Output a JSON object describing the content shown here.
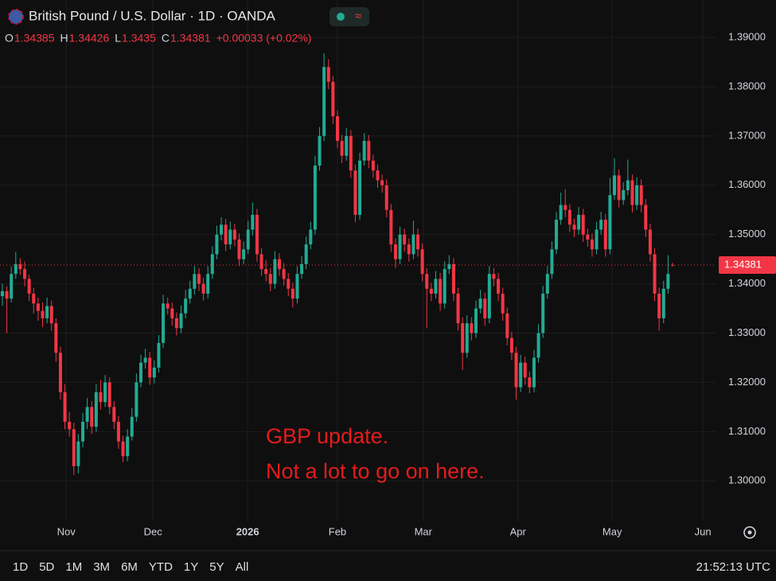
{
  "chart_data": {
    "type": "candlestick",
    "title": "British Pound / U.S. Dollar · 1D · OANDA",
    "ohlc_letters": [
      "O",
      "H",
      "L",
      "C"
    ],
    "change": "+0.00033 (+0.02%)",
    "annotation": [
      "GBP update.",
      "Not a lot to go on here."
    ],
    "up_color": "#22ab94",
    "down_color": "#f23645",
    "ylim": [
      1.2918,
      1.3976
    ],
    "yticks": [
      {
        "value": 1.39,
        "label": "1.39000"
      },
      {
        "value": 1.38,
        "label": "1.38000"
      },
      {
        "value": 1.37,
        "label": "1.37000"
      },
      {
        "value": 1.36,
        "label": "1.36000"
      },
      {
        "value": 1.35,
        "label": "1.35000"
      },
      {
        "value": 1.34,
        "label": "1.34000"
      },
      {
        "value": 1.33,
        "label": "1.33000"
      },
      {
        "value": 1.32,
        "label": "1.32000"
      },
      {
        "value": 1.31,
        "label": "1.31000"
      },
      {
        "value": 1.3,
        "label": "1.30000"
      }
    ],
    "xlim": [
      -0.53,
      159.8
    ],
    "xticks": [
      {
        "value": 14.3,
        "label": "Nov"
      },
      {
        "value": 33.7,
        "label": "Dec"
      },
      {
        "value": 54.9,
        "label": "2026"
      },
      {
        "value": 75.0,
        "label": "Feb"
      },
      {
        "value": 94.2,
        "label": "Mar"
      },
      {
        "value": 115.4,
        "label": "Apr"
      },
      {
        "value": 136.5,
        "label": "May"
      },
      {
        "value": 156.8,
        "label": "Jun"
      }
    ],
    "grid": true,
    "candles": [
      [
        1.3375,
        1.34,
        1.3355,
        1.3385
      ],
      [
        1.3385,
        1.3395,
        1.33,
        1.337
      ],
      [
        1.337,
        1.3435,
        1.3362,
        1.342
      ],
      [
        1.342,
        1.3465,
        1.341,
        1.344
      ],
      [
        1.344,
        1.3452,
        1.3418,
        1.343
      ],
      [
        1.343,
        1.3445,
        1.3395,
        1.341
      ],
      [
        1.341,
        1.3418,
        1.3365,
        1.338
      ],
      [
        1.338,
        1.3392,
        1.334,
        1.336
      ],
      [
        1.336,
        1.3372,
        1.3325,
        1.3345
      ],
      [
        1.3345,
        1.3362,
        1.3312,
        1.333
      ],
      [
        1.333,
        1.3372,
        1.332,
        1.3355
      ],
      [
        1.3355,
        1.3366,
        1.3305,
        1.332
      ],
      [
        1.332,
        1.333,
        1.3242,
        1.326
      ],
      [
        1.326,
        1.3272,
        1.3165,
        1.318
      ],
      [
        1.318,
        1.3196,
        1.3105,
        1.312
      ],
      [
        1.312,
        1.314,
        1.309,
        1.3105
      ],
      [
        1.3105,
        1.3118,
        1.3012,
        1.303
      ],
      [
        1.303,
        1.3095,
        1.3015,
        1.308
      ],
      [
        1.308,
        1.3138,
        1.3068,
        1.312
      ],
      [
        1.312,
        1.3168,
        1.3105,
        1.315
      ],
      [
        1.315,
        1.3162,
        1.3095,
        1.311
      ],
      [
        1.311,
        1.3196,
        1.31,
        1.318
      ],
      [
        1.318,
        1.3205,
        1.3145,
        1.316
      ],
      [
        1.316,
        1.3215,
        1.315,
        1.32
      ],
      [
        1.32,
        1.321,
        1.3135,
        1.315
      ],
      [
        1.315,
        1.3162,
        1.3105,
        1.312
      ],
      [
        1.312,
        1.3132,
        1.3065,
        1.308
      ],
      [
        1.308,
        1.3092,
        1.3038,
        1.305
      ],
      [
        1.305,
        1.3105,
        1.304,
        1.309
      ],
      [
        1.309,
        1.3148,
        1.3082,
        1.313
      ],
      [
        1.313,
        1.3218,
        1.312,
        1.32
      ],
      [
        1.32,
        1.3256,
        1.319,
        1.324
      ],
      [
        1.324,
        1.3268,
        1.3228,
        1.325
      ],
      [
        1.325,
        1.3262,
        1.3195,
        1.321
      ],
      [
        1.321,
        1.3245,
        1.3198,
        1.323
      ],
      [
        1.323,
        1.3296,
        1.322,
        1.328
      ],
      [
        1.328,
        1.3378,
        1.327,
        1.336
      ],
      [
        1.336,
        1.3372,
        1.3338,
        1.335
      ],
      [
        1.335,
        1.3362,
        1.3315,
        1.333
      ],
      [
        1.333,
        1.3342,
        1.3295,
        1.331
      ],
      [
        1.331,
        1.3356,
        1.33,
        1.334
      ],
      [
        1.334,
        1.3388,
        1.333,
        1.337
      ],
      [
        1.337,
        1.3406,
        1.336,
        1.339
      ],
      [
        1.339,
        1.3436,
        1.3378,
        1.342
      ],
      [
        1.342,
        1.3432,
        1.3385,
        1.34
      ],
      [
        1.34,
        1.3412,
        1.3366,
        1.338
      ],
      [
        1.338,
        1.3436,
        1.337,
        1.342
      ],
      [
        1.342,
        1.3476,
        1.341,
        1.346
      ],
      [
        1.346,
        1.3518,
        1.345,
        1.35
      ],
      [
        1.35,
        1.3535,
        1.3488,
        1.352
      ],
      [
        1.352,
        1.3532,
        1.3466,
        1.348
      ],
      [
        1.348,
        1.3526,
        1.347,
        1.351
      ],
      [
        1.351,
        1.3522,
        1.3476,
        1.349
      ],
      [
        1.349,
        1.3502,
        1.3436,
        1.345
      ],
      [
        1.345,
        1.3486,
        1.344,
        1.347
      ],
      [
        1.347,
        1.3528,
        1.346,
        1.351
      ],
      [
        1.351,
        1.3565,
        1.3498,
        1.354
      ],
      [
        1.354,
        1.3552,
        1.3445,
        1.346
      ],
      [
        1.346,
        1.3472,
        1.3416,
        1.343
      ],
      [
        1.343,
        1.3448,
        1.3405,
        1.342
      ],
      [
        1.342,
        1.3432,
        1.3385,
        1.34
      ],
      [
        1.34,
        1.3466,
        1.339,
        1.345
      ],
      [
        1.345,
        1.3462,
        1.3416,
        1.343
      ],
      [
        1.343,
        1.3442,
        1.3396,
        1.341
      ],
      [
        1.341,
        1.3422,
        1.3375,
        1.339
      ],
      [
        1.339,
        1.3402,
        1.3352,
        1.337
      ],
      [
        1.337,
        1.3436,
        1.336,
        1.342
      ],
      [
        1.342,
        1.3456,
        1.341,
        1.344
      ],
      [
        1.344,
        1.3496,
        1.343,
        1.348
      ],
      [
        1.348,
        1.3526,
        1.347,
        1.351
      ],
      [
        1.351,
        1.366,
        1.35,
        1.364
      ],
      [
        1.364,
        1.3718,
        1.363,
        1.37
      ],
      [
        1.37,
        1.3868,
        1.369,
        1.384
      ],
      [
        1.384,
        1.3856,
        1.3795,
        1.381
      ],
      [
        1.381,
        1.3822,
        1.3725,
        1.374
      ],
      [
        1.374,
        1.3752,
        1.3675,
        1.369
      ],
      [
        1.369,
        1.3702,
        1.3645,
        1.366
      ],
      [
        1.366,
        1.3716,
        1.365,
        1.37
      ],
      [
        1.37,
        1.3712,
        1.3615,
        1.363
      ],
      [
        1.363,
        1.3642,
        1.3525,
        1.354
      ],
      [
        1.354,
        1.3666,
        1.353,
        1.365
      ],
      [
        1.365,
        1.3706,
        1.364,
        1.369
      ],
      [
        1.369,
        1.3702,
        1.3635,
        1.365
      ],
      [
        1.365,
        1.3662,
        1.3615,
        1.363
      ],
      [
        1.363,
        1.3642,
        1.3595,
        1.361
      ],
      [
        1.361,
        1.3622,
        1.3585,
        1.36
      ],
      [
        1.36,
        1.3612,
        1.3535,
        1.355
      ],
      [
        1.355,
        1.3562,
        1.3465,
        1.348
      ],
      [
        1.348,
        1.3492,
        1.3432,
        1.345
      ],
      [
        1.345,
        1.3516,
        1.344,
        1.35
      ],
      [
        1.35,
        1.3512,
        1.3465,
        1.348
      ],
      [
        1.348,
        1.3492,
        1.3445,
        1.346
      ],
      [
        1.346,
        1.3528,
        1.345,
        1.35
      ],
      [
        1.35,
        1.3512,
        1.3455,
        1.347
      ],
      [
        1.347,
        1.3482,
        1.3405,
        1.342
      ],
      [
        1.342,
        1.3432,
        1.331,
        1.339
      ],
      [
        1.339,
        1.3402,
        1.3365,
        1.338
      ],
      [
        1.338,
        1.3426,
        1.337,
        1.341
      ],
      [
        1.341,
        1.3422,
        1.3345,
        1.336
      ],
      [
        1.336,
        1.3446,
        1.335,
        1.343
      ],
      [
        1.343,
        1.3458,
        1.342,
        1.344
      ],
      [
        1.344,
        1.3452,
        1.3365,
        1.338
      ],
      [
        1.338,
        1.3392,
        1.3305,
        1.332
      ],
      [
        1.332,
        1.3332,
        1.3225,
        1.326
      ],
      [
        1.326,
        1.3336,
        1.325,
        1.332
      ],
      [
        1.332,
        1.3332,
        1.3285,
        1.33
      ],
      [
        1.33,
        1.3366,
        1.329,
        1.335
      ],
      [
        1.335,
        1.3388,
        1.334,
        1.337
      ],
      [
        1.337,
        1.3382,
        1.3315,
        1.333
      ],
      [
        1.333,
        1.3436,
        1.332,
        1.342
      ],
      [
        1.342,
        1.3432,
        1.3395,
        1.341
      ],
      [
        1.341,
        1.3422,
        1.3365,
        1.338
      ],
      [
        1.338,
        1.3392,
        1.3325,
        1.334
      ],
      [
        1.334,
        1.3352,
        1.3275,
        1.329
      ],
      [
        1.329,
        1.3302,
        1.3245,
        1.326
      ],
      [
        1.326,
        1.3272,
        1.3165,
        1.319
      ],
      [
        1.319,
        1.3256,
        1.318,
        1.324
      ],
      [
        1.324,
        1.3252,
        1.3195,
        1.321
      ],
      [
        1.321,
        1.3222,
        1.3178,
        1.319
      ],
      [
        1.319,
        1.3266,
        1.318,
        1.325
      ],
      [
        1.325,
        1.3318,
        1.324,
        1.33
      ],
      [
        1.33,
        1.3396,
        1.329,
        1.338
      ],
      [
        1.338,
        1.3436,
        1.337,
        1.342
      ],
      [
        1.342,
        1.3486,
        1.341,
        1.347
      ],
      [
        1.347,
        1.3546,
        1.346,
        1.353
      ],
      [
        1.353,
        1.3585,
        1.352,
        1.356
      ],
      [
        1.356,
        1.3592,
        1.3535,
        1.355
      ],
      [
        1.355,
        1.3562,
        1.3505,
        1.352
      ],
      [
        1.352,
        1.3532,
        1.3495,
        1.351
      ],
      [
        1.351,
        1.3556,
        1.35,
        1.354
      ],
      [
        1.354,
        1.3552,
        1.3485,
        1.35
      ],
      [
        1.35,
        1.3512,
        1.3475,
        1.349
      ],
      [
        1.349,
        1.3502,
        1.3455,
        1.347
      ],
      [
        1.347,
        1.3526,
        1.346,
        1.351
      ],
      [
        1.351,
        1.3546,
        1.35,
        1.353
      ],
      [
        1.353,
        1.3542,
        1.3455,
        1.347
      ],
      [
        1.347,
        1.3615,
        1.346,
        1.358
      ],
      [
        1.358,
        1.3655,
        1.357,
        1.362
      ],
      [
        1.362,
        1.3632,
        1.3555,
        1.357
      ],
      [
        1.357,
        1.3606,
        1.356,
        1.359
      ],
      [
        1.359,
        1.3652,
        1.358,
        1.361
      ],
      [
        1.361,
        1.3622,
        1.3545,
        1.356
      ],
      [
        1.356,
        1.3616,
        1.355,
        1.36
      ],
      [
        1.36,
        1.3612,
        1.3545,
        1.356
      ],
      [
        1.356,
        1.3572,
        1.3495,
        1.351
      ],
      [
        1.351,
        1.3522,
        1.3445,
        1.346
      ],
      [
        1.346,
        1.3472,
        1.3365,
        1.338
      ],
      [
        1.338,
        1.3392,
        1.3305,
        1.333
      ],
      [
        1.333,
        1.3406,
        1.332,
        1.339
      ],
      [
        1.339,
        1.3458,
        1.338,
        1.342
      ],
      [
        1.34385,
        1.34426,
        1.3435,
        1.34381
      ]
    ]
  },
  "toolbar": {
    "ranges": [
      "1D",
      "5D",
      "1M",
      "3M",
      "6M",
      "YTD",
      "1Y",
      "5Y",
      "All"
    ],
    "clock": "21:52:13 UTC"
  }
}
